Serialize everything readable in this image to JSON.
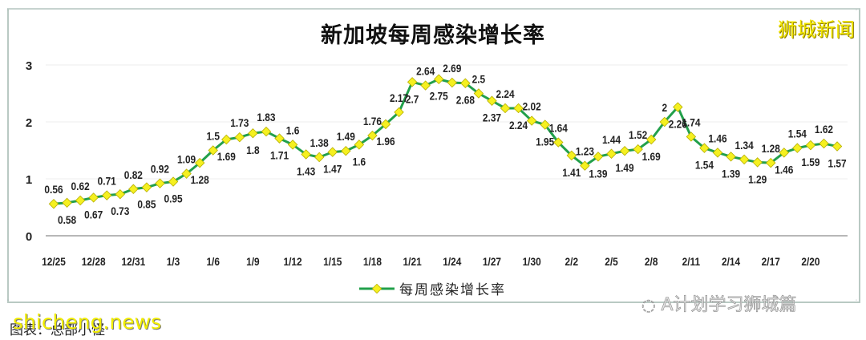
{
  "chart": {
    "title": "新加坡每周感染增长率",
    "brand": "狮城新闻",
    "legend_label": "每周感染增长率",
    "watermark": "A计划学习狮城篇",
    "source_caption": "图表：总部小怪",
    "site_overlay": "shicheng.news",
    "line_color": "#22a04b",
    "marker_color": "#f5f020"
  },
  "chart_data": {
    "type": "line",
    "title": "新加坡每周感染增长率",
    "xlabel": "",
    "ylabel": "",
    "ylim": [
      0,
      3
    ],
    "yticks": [
      0,
      1,
      2,
      3
    ],
    "grid": true,
    "legend_position": "bottom",
    "xtick_labels": [
      "12/25",
      "12/28",
      "12/31",
      "1/3",
      "1/6",
      "1/9",
      "1/12",
      "1/15",
      "1/18",
      "1/21",
      "1/24",
      "1/27",
      "1/30",
      "2/2",
      "2/5",
      "2/8",
      "2/11",
      "2/14",
      "2/17",
      "2/20"
    ],
    "x": [
      "12/25",
      "12/26",
      "12/27",
      "12/28",
      "12/29",
      "12/30",
      "12/31",
      "1/1",
      "1/2",
      "1/3",
      "1/4",
      "1/5",
      "1/6",
      "1/7",
      "1/8",
      "1/9",
      "1/10",
      "1/11",
      "1/12",
      "1/13",
      "1/14",
      "1/15",
      "1/16",
      "1/17",
      "1/18",
      "1/19",
      "1/20",
      "1/21",
      "1/22",
      "1/23",
      "1/24",
      "1/25",
      "1/26",
      "1/27",
      "1/28",
      "1/29",
      "1/30",
      "1/31",
      "2/1",
      "2/2",
      "2/3",
      "2/4",
      "2/5",
      "2/6",
      "2/7",
      "2/8",
      "2/9",
      "2/10",
      "2/11",
      "2/12",
      "2/13",
      "2/14",
      "2/15",
      "2/16",
      "2/17",
      "2/18",
      "2/19",
      "2/20",
      "2/21",
      "2/22"
    ],
    "series": [
      {
        "name": "每周感染增长率",
        "values": [
          0.56,
          0.58,
          0.62,
          0.67,
          0.71,
          0.73,
          0.82,
          0.85,
          0.92,
          0.95,
          1.09,
          1.28,
          1.5,
          1.69,
          1.73,
          1.8,
          1.83,
          1.71,
          1.6,
          1.43,
          1.38,
          1.47,
          1.49,
          1.6,
          1.76,
          1.96,
          2.17,
          2.7,
          2.64,
          2.75,
          2.69,
          2.68,
          2.5,
          2.37,
          2.24,
          2.24,
          2.02,
          1.95,
          1.64,
          1.41,
          1.23,
          1.39,
          1.44,
          1.49,
          1.52,
          1.69,
          2,
          2.26,
          1.74,
          1.54,
          1.46,
          1.39,
          1.34,
          1.29,
          1.28,
          1.46,
          1.54,
          1.59,
          1.62,
          1.57
        ]
      }
    ]
  }
}
